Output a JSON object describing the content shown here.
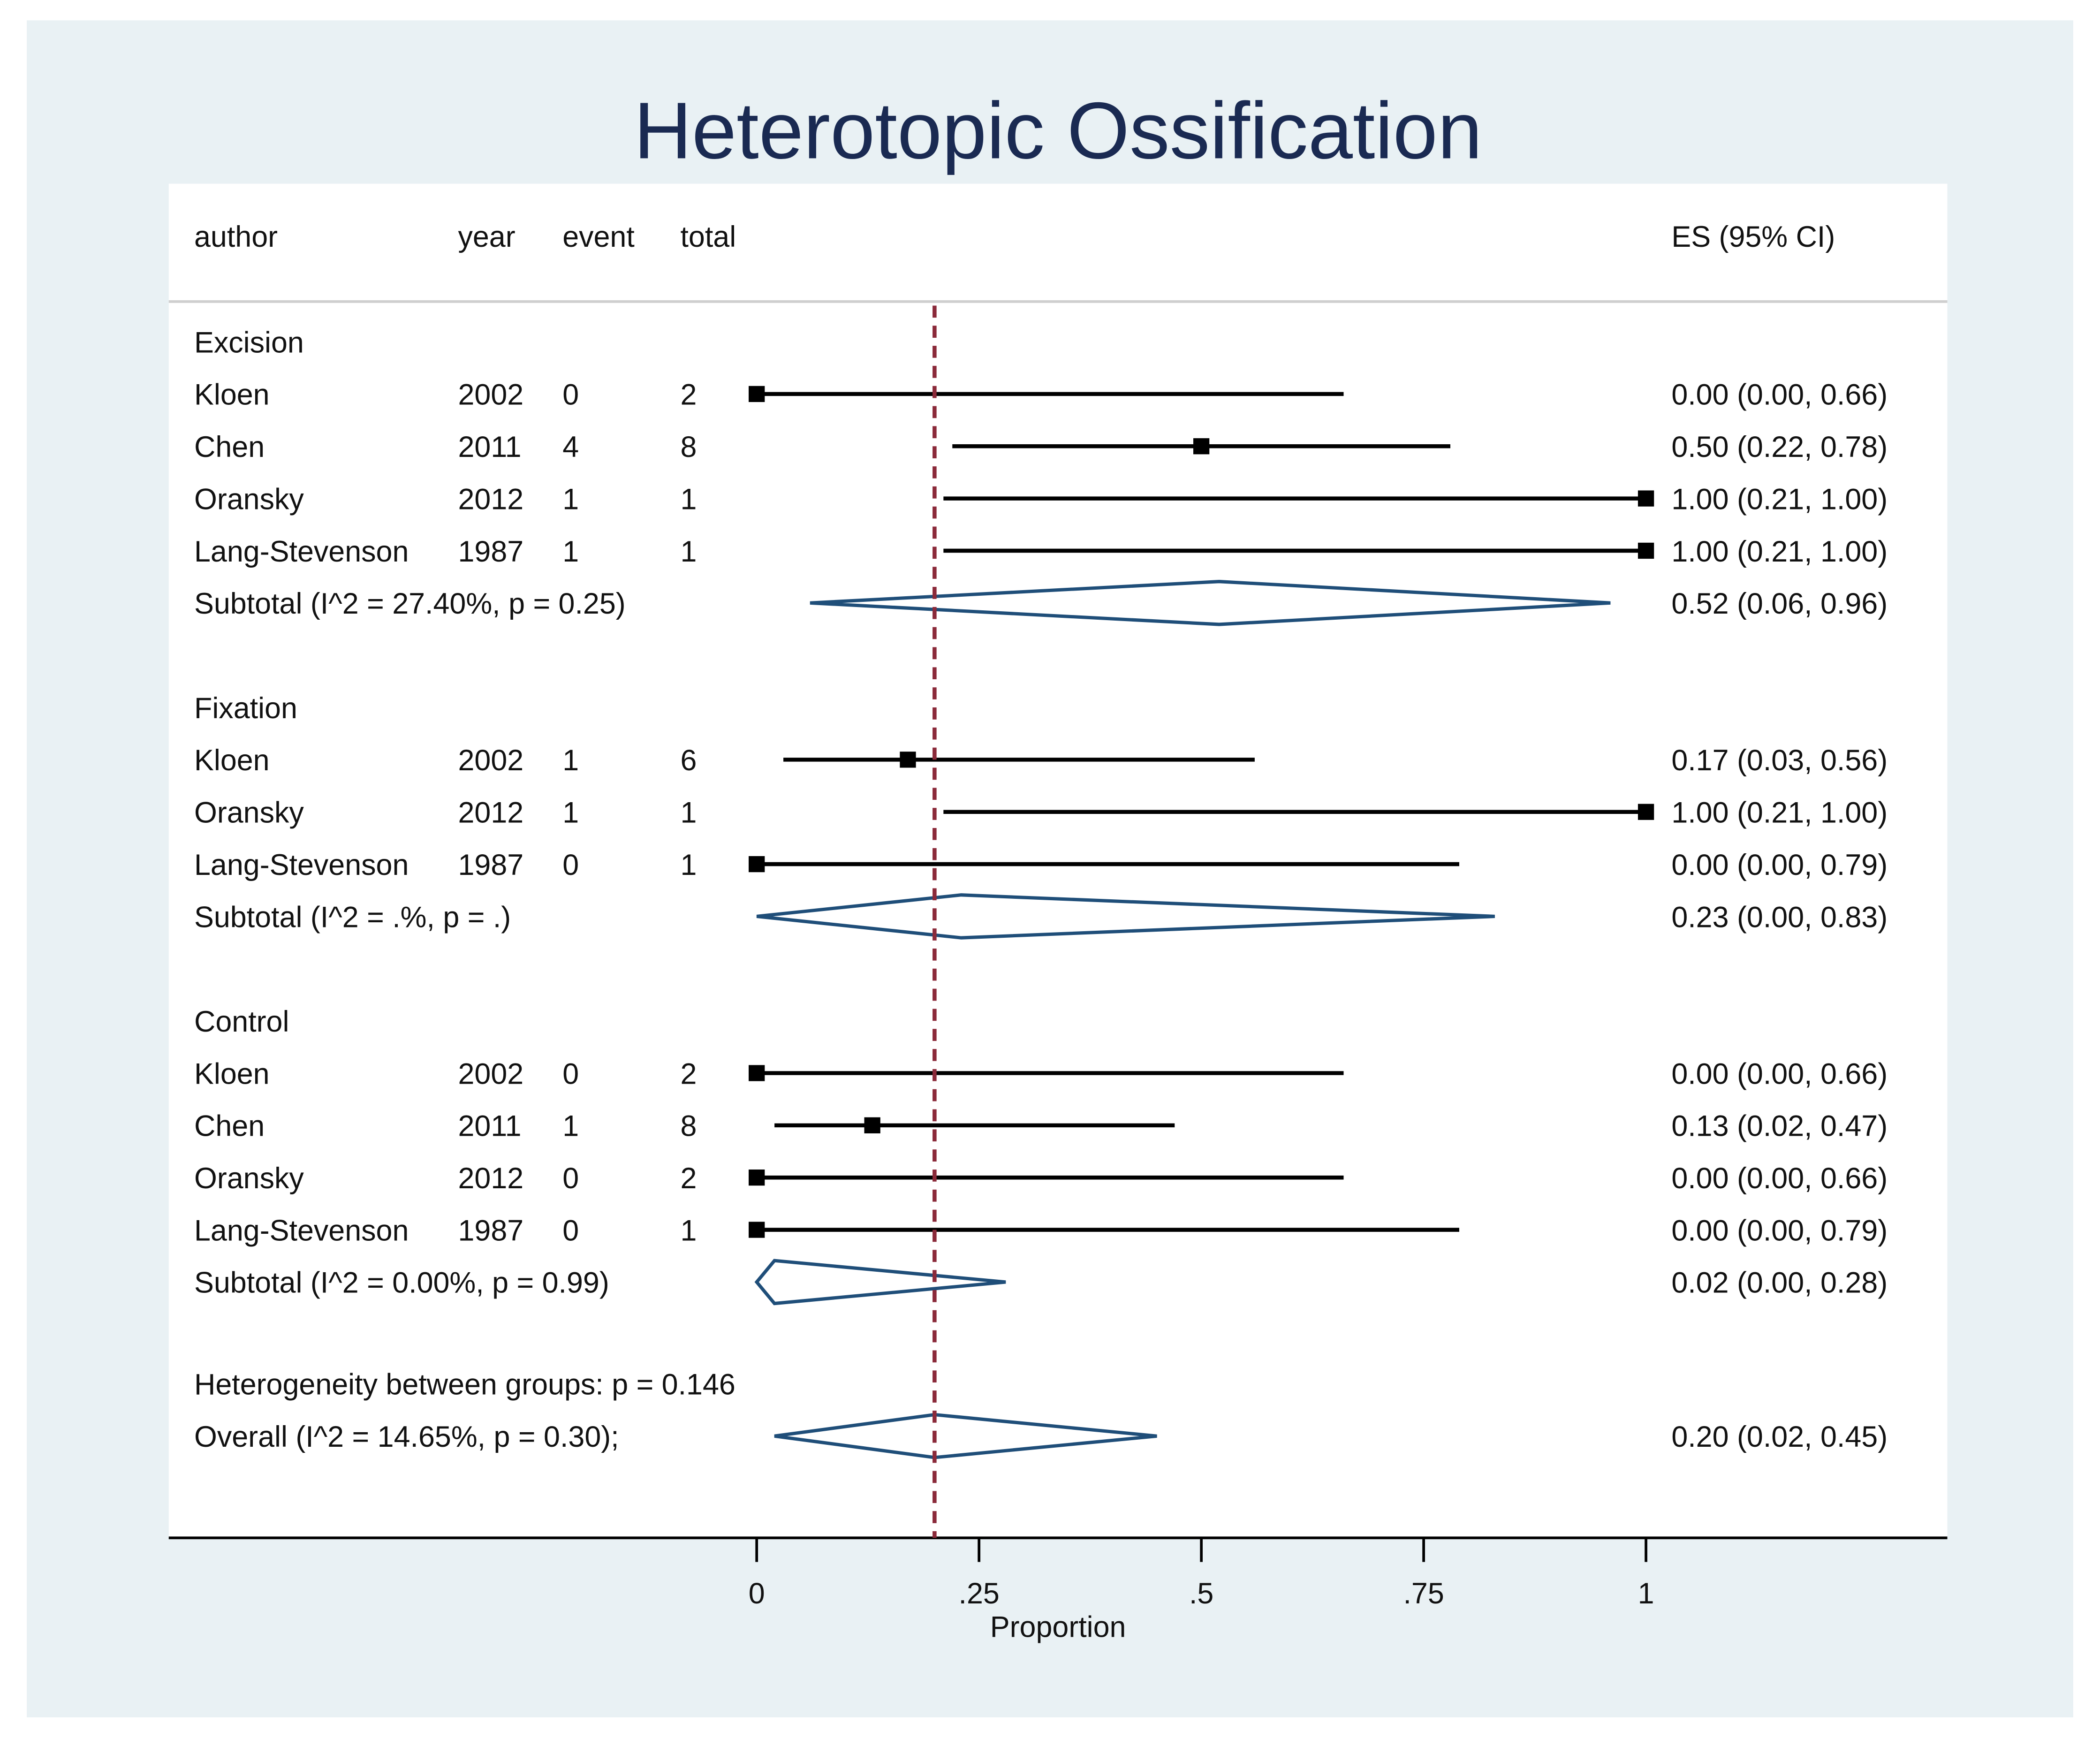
{
  "chart_data": {
    "type": "forest",
    "title": "Heterotopic Ossification",
    "xlabel": "Proportion",
    "xlim": [
      0,
      1
    ],
    "xticks": [
      0,
      0.25,
      0.5,
      0.75,
      1
    ],
    "xtick_labels": [
      "0",
      ".25",
      ".5",
      ".75",
      "1"
    ],
    "reference_line": 0.2,
    "headers": {
      "author": "author",
      "year": "year",
      "event": "event",
      "total": "total",
      "es": "ES (95% CI)"
    },
    "groups": [
      {
        "name": "Excision",
        "studies": [
          {
            "author": "Kloen",
            "year": "2002",
            "event": "0",
            "total": "2",
            "es": 0.0,
            "lo": 0.0,
            "hi": 0.66,
            "label": "0.00 (0.00, 0.66)"
          },
          {
            "author": "Chen",
            "year": "2011",
            "event": "4",
            "total": "8",
            "es": 0.5,
            "lo": 0.22,
            "hi": 0.78,
            "label": "0.50 (0.22, 0.78)"
          },
          {
            "author": "Oransky",
            "year": "2012",
            "event": "1",
            "total": "1",
            "es": 1.0,
            "lo": 0.21,
            "hi": 1.0,
            "label": "1.00 (0.21, 1.00)"
          },
          {
            "author": "Lang-Stevenson",
            "year": "1987",
            "event": "1",
            "total": "1",
            "es": 1.0,
            "lo": 0.21,
            "hi": 1.0,
            "label": "1.00 (0.21, 1.00)"
          }
        ],
        "subtotal": {
          "text": "Subtotal  (I^2 = 27.40%, p = 0.25)",
          "es": 0.52,
          "lo": 0.06,
          "hi": 0.96,
          "label": "0.52 (0.06, 0.96)"
        }
      },
      {
        "name": "Fixation",
        "studies": [
          {
            "author": "Kloen",
            "year": "2002",
            "event": "1",
            "total": "6",
            "es": 0.17,
            "lo": 0.03,
            "hi": 0.56,
            "label": "0.17 (0.03, 0.56)"
          },
          {
            "author": "Oransky",
            "year": "2012",
            "event": "1",
            "total": "1",
            "es": 1.0,
            "lo": 0.21,
            "hi": 1.0,
            "label": "1.00 (0.21, 1.00)"
          },
          {
            "author": "Lang-Stevenson",
            "year": "1987",
            "event": "0",
            "total": "1",
            "es": 0.0,
            "lo": 0.0,
            "hi": 0.79,
            "label": "0.00 (0.00, 0.79)"
          }
        ],
        "subtotal": {
          "text": "Subtotal  (I^2 = .%, p = .)",
          "es": 0.23,
          "lo": 0.0,
          "hi": 0.83,
          "label": "0.23 (0.00, 0.83)"
        }
      },
      {
        "name": "Control",
        "studies": [
          {
            "author": "Kloen",
            "year": "2002",
            "event": "0",
            "total": "2",
            "es": 0.0,
            "lo": 0.0,
            "hi": 0.66,
            "label": "0.00 (0.00, 0.66)"
          },
          {
            "author": "Chen",
            "year": "2011",
            "event": "1",
            "total": "8",
            "es": 0.13,
            "lo": 0.02,
            "hi": 0.47,
            "label": "0.13 (0.02, 0.47)"
          },
          {
            "author": "Oransky",
            "year": "2012",
            "event": "0",
            "total": "2",
            "es": 0.0,
            "lo": 0.0,
            "hi": 0.66,
            "label": "0.00 (0.00, 0.66)"
          },
          {
            "author": "Lang-Stevenson",
            "year": "1987",
            "event": "0",
            "total": "1",
            "es": 0.0,
            "lo": 0.0,
            "hi": 0.79,
            "label": "0.00 (0.00, 0.79)"
          }
        ],
        "subtotal": {
          "text": "Subtotal  (I^2 = 0.00%, p = 0.99)",
          "es": 0.02,
          "lo": 0.0,
          "hi": 0.28,
          "label": "0.02 (0.00, 0.28)"
        }
      }
    ],
    "heterogeneity": "Heterogeneity between groups: p = 0.146",
    "overall": {
      "text": "Overall  (I^2 = 14.65%, p = 0.30);",
      "es": 0.2,
      "lo": 0.02,
      "hi": 0.45,
      "label": "0.20 (0.02, 0.45)"
    },
    "colors": {
      "background": "#e9f1f4",
      "title": "#1a2a52",
      "diamond": "#1f4e79",
      "refline": "#8b2a3a",
      "marker": "#000000"
    }
  }
}
